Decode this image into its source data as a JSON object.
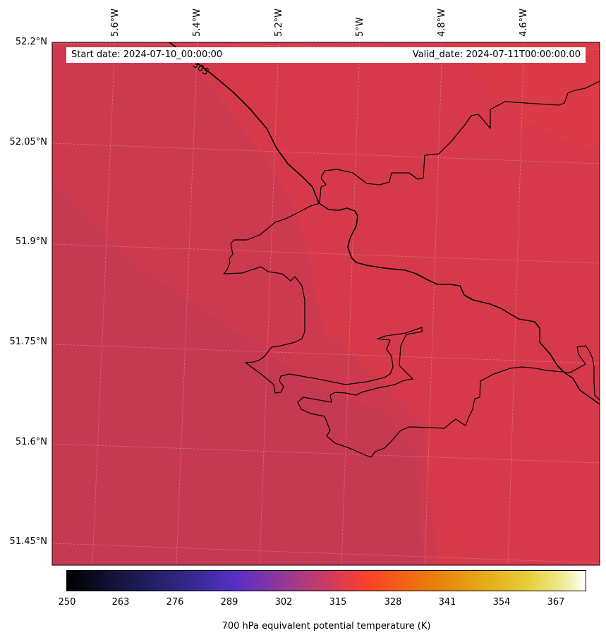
{
  "map": {
    "lat_labels": [
      "52.2°N",
      "52.05°N",
      "51.9°N",
      "51.75°N",
      "51.6°N",
      "51.45°N"
    ],
    "lon_labels": [
      "5.6°W",
      "5.4°W",
      "5.2°W",
      "5°W",
      "4.8°W",
      "4.6°W"
    ],
    "contour_label": "305",
    "field_colors": {
      "west": "#c63953",
      "central": "#cd3a50",
      "east": "#d63a4a",
      "northeast": "#da3b46"
    }
  },
  "info": {
    "start_date": "Start date: 2024-07-10_00:00:00",
    "valid_date": "Valid_date: 2024-07-11T00:00:00.00"
  },
  "colorbar": {
    "label": "700 hPa equivalent potential temperature (K)",
    "ticks": [
      "250",
      "263",
      "276",
      "289",
      "302",
      "315",
      "328",
      "341",
      "354",
      "367"
    ],
    "range": [
      250,
      372
    ],
    "colormap": "CMRmap"
  }
}
